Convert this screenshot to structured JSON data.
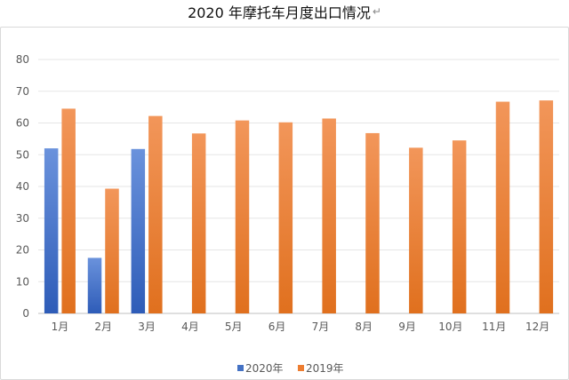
{
  "chart_data": {
    "type": "bar",
    "title": "2020 年摩托车月度出口情况",
    "title_mark": "↵",
    "xlabel": "",
    "ylabel": "",
    "ylim": [
      0,
      80
    ],
    "yticks": [
      "0",
      "10",
      "20",
      "30",
      "40",
      "50",
      "60",
      "70",
      "80"
    ],
    "categories": [
      "1月",
      "2月",
      "3月",
      "4月",
      "5月",
      "6月",
      "7月",
      "8月",
      "9月",
      "10月",
      "11月",
      "12月"
    ],
    "series": [
      {
        "name": "2020年",
        "color": "#4472c4",
        "values": [
          52,
          17.5,
          51.8,
          null,
          null,
          null,
          null,
          null,
          null,
          null,
          null,
          null
        ]
      },
      {
        "name": "2019年",
        "color": "#ed7d31",
        "values": [
          64.5,
          39.3,
          62.2,
          56.7,
          60.8,
          60.2,
          61.4,
          56.8,
          52.2,
          54.5,
          66.7,
          67.1
        ]
      }
    ],
    "grid": true,
    "legend_position": "bottom"
  }
}
